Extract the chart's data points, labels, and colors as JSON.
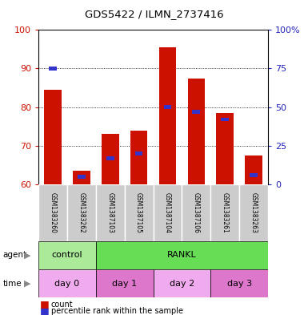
{
  "title": "GDS5422 / ILMN_2737416",
  "samples": [
    "GSM1383260",
    "GSM1383262",
    "GSM1387103",
    "GSM1387105",
    "GSM1387104",
    "GSM1387106",
    "GSM1383261",
    "GSM1383263"
  ],
  "counts": [
    84.5,
    63.5,
    73.0,
    74.0,
    95.5,
    87.5,
    78.5,
    67.5
  ],
  "percentile_ranks": [
    75,
    5,
    17,
    20,
    50,
    47,
    42,
    6
  ],
  "ylim_left": [
    60,
    100
  ],
  "ylim_right": [
    0,
    100
  ],
  "yticks_left": [
    60,
    70,
    80,
    90,
    100
  ],
  "ytick_labels_left": [
    "60",
    "70",
    "80",
    "90",
    "100"
  ],
  "yticks_right_pct": [
    0,
    25,
    50,
    75,
    100
  ],
  "ytick_labels_right": [
    "0",
    "25",
    "50",
    "75",
    "100%"
  ],
  "bar_color": "#cc1100",
  "percentile_color": "#3333cc",
  "bar_width": 0.6,
  "agent_labels": [
    {
      "label": "control",
      "start": 0,
      "end": 2,
      "color": "#aaea99"
    },
    {
      "label": "RANKL",
      "start": 2,
      "end": 8,
      "color": "#66dd55"
    }
  ],
  "time_labels": [
    {
      "label": "day 0",
      "start": 0,
      "end": 2,
      "color": "#f0aaee"
    },
    {
      "label": "day 1",
      "start": 2,
      "end": 4,
      "color": "#dd77cc"
    },
    {
      "label": "day 2",
      "start": 4,
      "end": 6,
      "color": "#f0aaee"
    },
    {
      "label": "day 3",
      "start": 6,
      "end": 8,
      "color": "#dd77cc"
    }
  ],
  "background_color": "#ffffff",
  "left_color": "#cc1100",
  "right_color": "#2222bb",
  "grid_color": "#333333"
}
